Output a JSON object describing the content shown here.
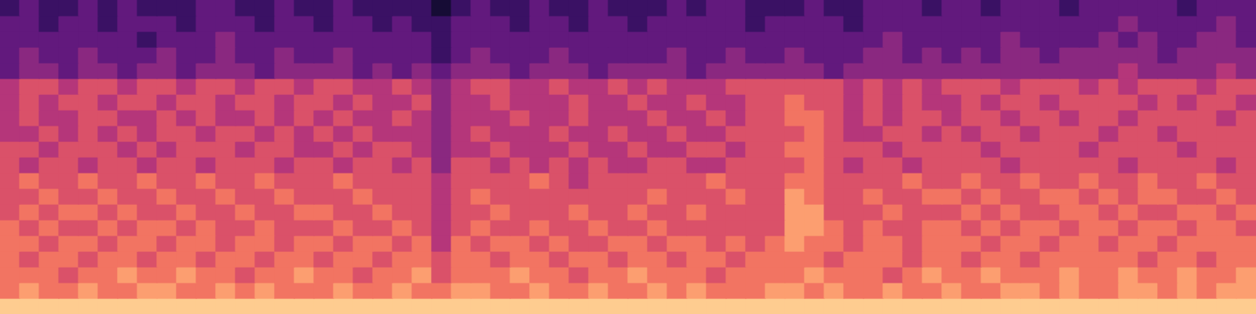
{
  "chart_data": {
    "type": "heatmap",
    "tick_labels": false,
    "zlim": [
      0,
      10
    ],
    "cells": [
      [
        2,
        3,
        2,
        2,
        3,
        2,
        3,
        2,
        2,
        2,
        3,
        3,
        2,
        2,
        3,
        2,
        2,
        3,
        2,
        2,
        2,
        2,
        1,
        2,
        3,
        2,
        2,
        3,
        2,
        2,
        3,
        2,
        2,
        2,
        3,
        2,
        3,
        3,
        2,
        2,
        2,
        3,
        2,
        2,
        3,
        3,
        3,
        2,
        3,
        3,
        2,
        3,
        3,
        3,
        2,
        3,
        3,
        3,
        3,
        3,
        2,
        3,
        3,
        3
      ],
      [
        3,
        3,
        2,
        3,
        3,
        2,
        3,
        3,
        3,
        2,
        3,
        3,
        3,
        2,
        3,
        3,
        2,
        3,
        3,
        2,
        3,
        2,
        2,
        3,
        3,
        3,
        2,
        3,
        3,
        2,
        3,
        3,
        2,
        3,
        3,
        3,
        3,
        3,
        2,
        3,
        3,
        3,
        3,
        2,
        3,
        3,
        3,
        3,
        3,
        3,
        3,
        3,
        3,
        3,
        3,
        3,
        3,
        4,
        3,
        3,
        3,
        3,
        4,
        3
      ],
      [
        3,
        3,
        3,
        3,
        3,
        3,
        3,
        2,
        3,
        3,
        3,
        4,
        3,
        3,
        3,
        3,
        3,
        3,
        3,
        3,
        3,
        3,
        2,
        3,
        3,
        3,
        3,
        3,
        3,
        3,
        3,
        3,
        3,
        3,
        3,
        3,
        3,
        3,
        3,
        3,
        3,
        3,
        3,
        3,
        3,
        4,
        3,
        3,
        3,
        3,
        3,
        4,
        3,
        3,
        3,
        3,
        4,
        3,
        4,
        3,
        3,
        4,
        4,
        3
      ],
      [
        3,
        4,
        3,
        3,
        4,
        3,
        3,
        3,
        4,
        3,
        3,
        4,
        3,
        3,
        4,
        3,
        3,
        4,
        3,
        3,
        3,
        3,
        2,
        3,
        4,
        3,
        3,
        3,
        4,
        3,
        3,
        3,
        3,
        3,
        4,
        3,
        3,
        4,
        3,
        3,
        4,
        3,
        3,
        3,
        4,
        4,
        3,
        4,
        3,
        4,
        3,
        4,
        4,
        3,
        4,
        4,
        4,
        4,
        4,
        3,
        4,
        4,
        4,
        4
      ],
      [
        3,
        4,
        4,
        3,
        4,
        4,
        3,
        4,
        4,
        3,
        4,
        4,
        4,
        3,
        4,
        4,
        4,
        4,
        3,
        4,
        3,
        4,
        3,
        4,
        4,
        4,
        3,
        4,
        4,
        4,
        3,
        4,
        4,
        4,
        4,
        3,
        4,
        4,
        4,
        4,
        4,
        4,
        3,
        4,
        4,
        4,
        4,
        4,
        4,
        4,
        4,
        4,
        4,
        4,
        4,
        4,
        4,
        5,
        4,
        4,
        4,
        4,
        5,
        4
      ],
      [
        5,
        6,
        6,
        5,
        6,
        6,
        5,
        6,
        6,
        5,
        6,
        6,
        5,
        6,
        6,
        5,
        6,
        6,
        5,
        5,
        6,
        5,
        4,
        5,
        6,
        6,
        5,
        5,
        6,
        5,
        5,
        6,
        5,
        6,
        5,
        5,
        5,
        6,
        6,
        6,
        6,
        6,
        6,
        5,
        6,
        5,
        6,
        5,
        6,
        6,
        6,
        5,
        6,
        6,
        6,
        5,
        6,
        5,
        6,
        6,
        6,
        5,
        6,
        6
      ],
      [
        5,
        6,
        5,
        6,
        6,
        5,
        6,
        6,
        5,
        6,
        6,
        5,
        6,
        6,
        5,
        6,
        6,
        5,
        6,
        5,
        5,
        6,
        4,
        5,
        5,
        6,
        5,
        5,
        5,
        6,
        5,
        5,
        6,
        5,
        5,
        6,
        5,
        5,
        6,
        6,
        7,
        6,
        6,
        5,
        6,
        5,
        6,
        5,
        5,
        6,
        5,
        6,
        6,
        5,
        6,
        6,
        6,
        6,
        5,
        6,
        5,
        6,
        6,
        5
      ],
      [
        5,
        6,
        5,
        5,
        6,
        6,
        5,
        5,
        6,
        5,
        6,
        5,
        5,
        6,
        5,
        6,
        5,
        6,
        5,
        5,
        6,
        5,
        4,
        5,
        5,
        5,
        6,
        5,
        5,
        6,
        5,
        5,
        5,
        6,
        5,
        5,
        6,
        5,
        6,
        6,
        7,
        7,
        6,
        5,
        6,
        5,
        6,
        6,
        5,
        6,
        6,
        5,
        6,
        6,
        5,
        6,
        6,
        5,
        6,
        6,
        6,
        6,
        5,
        6
      ],
      [
        5,
        5,
        6,
        5,
        6,
        5,
        6,
        5,
        6,
        6,
        5,
        6,
        6,
        5,
        6,
        5,
        6,
        5,
        6,
        5,
        5,
        5,
        4,
        5,
        6,
        5,
        5,
        5,
        6,
        5,
        5,
        6,
        5,
        5,
        6,
        5,
        5,
        6,
        6,
        6,
        6,
        7,
        6,
        5,
        5,
        6,
        6,
        5,
        6,
        5,
        6,
        6,
        5,
        6,
        6,
        6,
        5,
        6,
        6,
        5,
        6,
        6,
        6,
        6
      ],
      [
        6,
        6,
        5,
        6,
        6,
        6,
        5,
        6,
        5,
        6,
        6,
        6,
        5,
        6,
        6,
        5,
        5,
        6,
        5,
        6,
        6,
        5,
        4,
        5,
        5,
        6,
        5,
        5,
        5,
        6,
        5,
        5,
        6,
        5,
        5,
        6,
        6,
        5,
        6,
        6,
        7,
        7,
        6,
        6,
        6,
        5,
        6,
        6,
        6,
        6,
        5,
        6,
        6,
        6,
        6,
        5,
        6,
        6,
        6,
        6,
        5,
        6,
        6,
        6
      ],
      [
        6,
        5,
        6,
        6,
        5,
        6,
        6,
        5,
        6,
        6,
        5,
        6,
        6,
        6,
        5,
        6,
        6,
        5,
        6,
        6,
        5,
        6,
        4,
        6,
        6,
        5,
        6,
        5,
        6,
        5,
        6,
        5,
        5,
        6,
        6,
        5,
        5,
        6,
        6,
        6,
        6,
        7,
        6,
        5,
        6,
        6,
        5,
        6,
        6,
        6,
        6,
        5,
        6,
        6,
        6,
        6,
        6,
        5,
        6,
        6,
        6,
        6,
        5,
        6
      ],
      [
        6,
        7,
        6,
        6,
        7,
        6,
        6,
        7,
        6,
        6,
        7,
        6,
        6,
        7,
        6,
        6,
        6,
        7,
        6,
        6,
        6,
        6,
        5,
        6,
        6,
        6,
        6,
        7,
        6,
        5,
        6,
        6,
        6,
        6,
        6,
        6,
        7,
        6,
        6,
        6,
        7,
        7,
        6,
        6,
        6,
        6,
        7,
        6,
        6,
        7,
        6,
        6,
        7,
        6,
        6,
        7,
        6,
        6,
        7,
        6,
        6,
        7,
        6,
        6
      ],
      [
        6,
        6,
        7,
        6,
        6,
        7,
        6,
        6,
        7,
        6,
        6,
        7,
        6,
        6,
        7,
        6,
        6,
        6,
        7,
        6,
        6,
        6,
        5,
        6,
        7,
        6,
        6,
        6,
        6,
        6,
        6,
        6,
        6,
        7,
        6,
        6,
        6,
        7,
        6,
        6,
        8,
        7,
        6,
        6,
        7,
        6,
        6,
        7,
        7,
        6,
        7,
        6,
        6,
        7,
        7,
        6,
        7,
        6,
        7,
        7,
        6,
        6,
        7,
        6
      ],
      [
        6,
        7,
        6,
        7,
        7,
        6,
        7,
        6,
        6,
        7,
        6,
        6,
        7,
        6,
        6,
        7,
        7,
        6,
        6,
        7,
        6,
        6,
        5,
        6,
        6,
        7,
        6,
        6,
        6,
        7,
        6,
        6,
        7,
        6,
        6,
        7,
        6,
        6,
        6,
        6,
        8,
        8,
        6,
        6,
        6,
        7,
        6,
        6,
        6,
        7,
        6,
        7,
        6,
        6,
        7,
        7,
        6,
        7,
        6,
        6,
        7,
        7,
        6,
        7
      ],
      [
        7,
        6,
        7,
        6,
        6,
        7,
        6,
        7,
        7,
        6,
        7,
        6,
        6,
        7,
        6,
        6,
        6,
        7,
        6,
        6,
        7,
        6,
        5,
        6,
        7,
        6,
        6,
        7,
        6,
        6,
        7,
        6,
        6,
        7,
        6,
        6,
        6,
        6,
        6,
        6,
        8,
        8,
        7,
        6,
        7,
        6,
        6,
        7,
        7,
        6,
        7,
        6,
        7,
        7,
        6,
        7,
        7,
        6,
        7,
        7,
        6,
        7,
        7,
        6
      ],
      [
        7,
        7,
        6,
        7,
        7,
        6,
        7,
        7,
        6,
        7,
        7,
        6,
        7,
        7,
        6,
        7,
        7,
        6,
        7,
        7,
        6,
        7,
        5,
        7,
        6,
        7,
        7,
        6,
        7,
        6,
        6,
        7,
        7,
        6,
        7,
        7,
        6,
        7,
        6,
        7,
        8,
        7,
        7,
        6,
        7,
        7,
        6,
        7,
        7,
        7,
        6,
        7,
        7,
        6,
        7,
        7,
        6,
        7,
        7,
        6,
        7,
        7,
        7,
        7
      ],
      [
        7,
        6,
        7,
        7,
        6,
        7,
        7,
        6,
        7,
        7,
        6,
        7,
        7,
        6,
        7,
        7,
        6,
        7,
        7,
        6,
        7,
        7,
        6,
        7,
        7,
        6,
        7,
        7,
        6,
        7,
        7,
        6,
        7,
        7,
        6,
        7,
        7,
        6,
        7,
        7,
        7,
        7,
        6,
        7,
        7,
        7,
        6,
        7,
        7,
        6,
        7,
        7,
        6,
        7,
        7,
        7,
        7,
        7,
        6,
        7,
        7,
        6,
        7,
        7
      ],
      [
        7,
        7,
        7,
        6,
        7,
        7,
        8,
        7,
        7,
        8,
        7,
        7,
        6,
        7,
        7,
        8,
        7,
        7,
        6,
        7,
        7,
        8,
        6,
        7,
        7,
        7,
        8,
        7,
        7,
        6,
        7,
        7,
        8,
        7,
        7,
        7,
        6,
        7,
        7,
        7,
        7,
        8,
        7,
        7,
        7,
        6,
        7,
        8,
        7,
        7,
        8,
        7,
        7,
        7,
        8,
        7,
        7,
        8,
        7,
        7,
        8,
        7,
        7,
        8
      ],
      [
        7,
        8,
        7,
        7,
        8,
        7,
        7,
        8,
        8,
        7,
        7,
        8,
        7,
        8,
        7,
        7,
        7,
        8,
        7,
        7,
        8,
        7,
        7,
        8,
        8,
        7,
        7,
        8,
        7,
        7,
        8,
        7,
        7,
        8,
        7,
        8,
        7,
        7,
        7,
        8,
        8,
        7,
        8,
        7,
        7,
        8,
        7,
        7,
        8,
        7,
        7,
        8,
        8,
        7,
        8,
        7,
        7,
        8,
        8,
        7,
        8,
        7,
        8,
        8
      ],
      [
        9,
        9,
        9,
        9,
        9,
        9,
        9,
        9,
        9,
        9,
        9,
        9,
        9,
        9,
        9,
        9,
        9,
        9,
        9,
        9,
        9,
        9,
        9,
        9,
        9,
        9,
        9,
        9,
        9,
        9,
        9,
        9,
        9,
        9,
        9,
        9,
        9,
        9,
        9,
        9,
        9,
        9,
        9,
        9,
        9,
        9,
        9,
        9,
        9,
        9,
        9,
        9,
        9,
        9,
        9,
        9,
        9,
        9,
        9,
        9,
        9,
        9,
        9,
        9
      ]
    ]
  }
}
